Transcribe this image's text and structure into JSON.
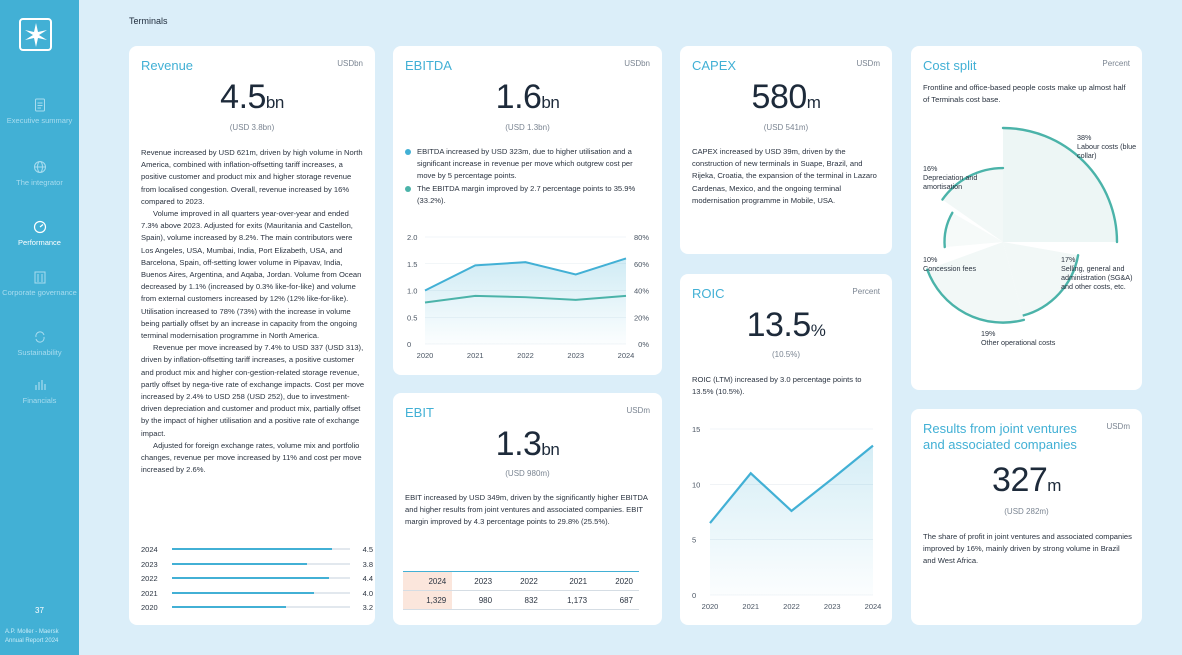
{
  "sidebar": {
    "items": [
      {
        "label": "Executive summary",
        "icon": "document-icon",
        "active": false
      },
      {
        "label": "The integrator",
        "icon": "globe-icon",
        "active": false
      },
      {
        "label": "Performance",
        "icon": "gauge-icon",
        "active": true
      },
      {
        "label": "Corporate governance",
        "icon": "building-icon",
        "active": false
      },
      {
        "label": "Sustainability",
        "icon": "recycle-icon",
        "active": false
      },
      {
        "label": "Financials",
        "icon": "bar-chart-icon",
        "active": false
      }
    ],
    "page_number": "37",
    "brand_line1": "A.P. Moller - Maersk",
    "brand_line2": "Annual Report 2024"
  },
  "page_title": "Terminals",
  "revenue": {
    "title": "Revenue",
    "unit": "USDbn",
    "value": "4.5",
    "value_suffix": "bn",
    "prev": "(USD 3.8bn)",
    "paragraphs": [
      "Revenue increased by USD 621m, driven by high volume in North America, combined with inflation-offsetting tariff increases, a positive customer and product mix and higher storage revenue from localised congestion. Overall, revenue increased by 16% compared to 2023.",
      "Volume improved in all quarters year-over-year and ended 7.3% above 2023. Adjusted for exits (Mauritania and Castellon, Spain), volume increased by 8.2%. The main contributors were Los Angeles, USA, Mumbai, India, Port Elizabeth, USA, and Barcelona, Spain, off-setting lower volume in Pipavav, India, Buenos Aires, Argentina, and Aqaba, Jordan. Volume from Ocean decreased by 1.1% (increased by 0.3% like-for-like) and volume from external customers increased by 12% (12% like-for-like). Utilisation increased to 78% (73%) with the increase in volume being partially offset by an increase in capacity from the ongoing terminal modernisation programme in North America.",
      "Revenue per move increased by 7.4% to USD 337 (USD 313), driven by inflation-offsetting tariff increases, a positive customer and product mix and higher con-gestion-related storage revenue, partly offset by nega-tive rate of exchange impacts. Cost per move increased by 2.4% to USD 258 (USD 252), due to investment-driven depreciation and customer and product mix, partially offset by the impact of higher utilisation and a positive rate of exchange impact.",
      "Adjusted for foreign exchange rates, volume mix and portfolio changes, revenue per move increased by 11% and cost per move increased by 2.6%."
    ],
    "bars": [
      {
        "year": "2024",
        "value": 4.5,
        "label": "4.5"
      },
      {
        "year": "2023",
        "value": 3.8,
        "label": "3.8"
      },
      {
        "year": "2022",
        "value": 4.4,
        "label": "4.4"
      },
      {
        "year": "2021",
        "value": 4.0,
        "label": "4.0"
      },
      {
        "year": "2020",
        "value": 3.2,
        "label": "3.2"
      }
    ]
  },
  "ebitda": {
    "title": "EBITDA",
    "unit": "USDbn",
    "value": "1.6",
    "value_suffix": "bn",
    "prev": "(USD 1.3bn)",
    "bullets": [
      {
        "text": "EBITDA increased by USD 323m, due to higher utilisation and a significant increase in revenue per move which outgrew cost per move by 5 percentage points.",
        "color": "#42b0d5"
      },
      {
        "text": "The EBITDA margin improved by 2.7 percentage points to 35.9% (33.2%).",
        "color": "#4bb3a9"
      }
    ]
  },
  "capex": {
    "title": "CAPEX",
    "unit": "USDm",
    "value": "580",
    "value_suffix": "m",
    "prev": "(USD 541m)",
    "text": "CAPEX increased by USD 39m, driven by the construction of new terminals in Suape, Brazil, and Rijeka, Croatia, the expansion of the terminal in Lazaro Cardenas, Mexico, and the ongoing terminal modernisation programme in Mobile, USA."
  },
  "cost_split": {
    "title": "Cost split",
    "unit": "Percent",
    "subtitle": "Frontline and office-based people costs make up almost half of Terminals cost base.",
    "segments": [
      {
        "pct": "38%",
        "label": "Labour costs (blue collar)",
        "value": 38
      },
      {
        "pct": "17%",
        "label": "Selling, general and administration (SG&A) and other costs, etc.",
        "value": 17
      },
      {
        "pct": "19%",
        "label": "Other operational costs",
        "value": 19
      },
      {
        "pct": "10%",
        "label": "Concession fees",
        "value": 10
      },
      {
        "pct": "16%",
        "label": "Depreciation and amortisation",
        "value": 16
      }
    ]
  },
  "roic": {
    "title": "ROIC",
    "unit": "Percent",
    "value": "13.5",
    "value_suffix": "%",
    "prev": "(10.5%)",
    "text": "ROIC (LTM) increased by 3.0 percentage points to 13.5% (10.5%)."
  },
  "ebit": {
    "title": "EBIT",
    "unit": "USDm",
    "value": "1.3",
    "value_suffix": "bn",
    "prev": "(USD 980m)",
    "text": "EBIT increased by USD 349m, driven by the significantly higher EBITDA and higher results from joint ventures and associated companies. EBIT margin improved by 4.3 percentage points to 29.8% (25.5%).",
    "table": {
      "years": [
        "2024",
        "2023",
        "2022",
        "2021",
        "2020"
      ],
      "values": [
        "1,329",
        "980",
        "832",
        "1,173",
        "687"
      ]
    }
  },
  "jv": {
    "title_line1": "Results from joint ventures",
    "title_line2": "and associated companies",
    "unit": "USDm",
    "value": "327",
    "value_suffix": "m",
    "prev": "(USD 282m)",
    "text": "The share of profit in joint ventures and associated companies improved by 16%, mainly driven by strong volume in Brazil and West Africa."
  },
  "chart_data": [
    {
      "type": "line",
      "x": [
        "2020",
        "2021",
        "2022",
        "2023",
        "2024"
      ],
      "series": [
        {
          "values": [
            1.0,
            1.47,
            1.53,
            1.3,
            1.6
          ],
          "axis": "left",
          "color": "#42b0d5"
        },
        {
          "values": [
            31,
            36,
            35,
            33,
            36
          ],
          "axis": "right",
          "color": "#4bb3a9"
        }
      ],
      "yticks_left": [
        "2.0",
        "1.5",
        "1.0",
        "0.5",
        "0"
      ],
      "ylim_left": [
        0,
        2.0
      ],
      "yticks_right": [
        "80%",
        "60%",
        "40%",
        "20%",
        "0%"
      ],
      "ylim_right": [
        0,
        80
      ]
    },
    {
      "type": "line",
      "x": [
        "2020",
        "2021",
        "2022",
        "2023",
        "2024"
      ],
      "series": [
        {
          "values": [
            6.5,
            11.0,
            7.6,
            10.5,
            13.5
          ],
          "color": "#42b0d5"
        }
      ],
      "yticks": [
        "15",
        "10",
        "5",
        "0"
      ],
      "ylim": [
        0,
        15
      ]
    },
    {
      "type": "bar",
      "categories": [
        "2024",
        "2023",
        "2022",
        "2021",
        "2020"
      ],
      "values": [
        4.5,
        3.8,
        4.4,
        4.0,
        3.2
      ]
    },
    {
      "type": "pie",
      "categories": [
        "Labour costs (blue collar)",
        "Selling, general and administration (SG&A) and other costs, etc.",
        "Other operational costs",
        "Concession fees",
        "Depreciation and amortisation"
      ],
      "values": [
        38,
        17,
        19,
        10,
        16
      ]
    }
  ]
}
